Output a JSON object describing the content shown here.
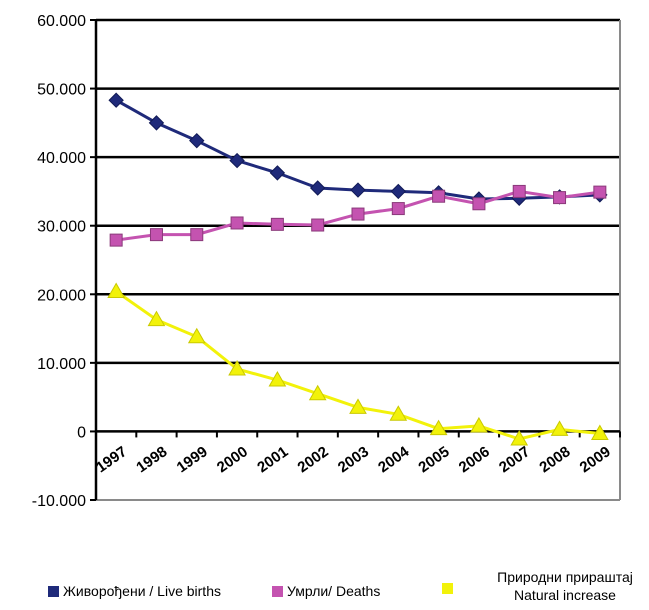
{
  "chart_data": {
    "type": "line",
    "categories": [
      "1997",
      "1998",
      "1999",
      "2000",
      "2001",
      "2002",
      "2003",
      "2004",
      "2005",
      "2006",
      "2007",
      "2008",
      "2009"
    ],
    "ylim": [
      -10000,
      60000
    ],
    "yticks": [
      -10000,
      0,
      10000,
      20000,
      30000,
      40000,
      50000,
      60000
    ],
    "ytick_labels": [
      "-10.000",
      "0",
      "10.000",
      "20.000",
      "30.000",
      "40.000",
      "50.000",
      "60.000"
    ],
    "grid": true,
    "legend_position": "bottom",
    "series": [
      {
        "name": "Живорођени / Live births",
        "color": "#1f2a7a",
        "marker": "diamond",
        "values": [
          48300,
          45000,
          42400,
          39500,
          37700,
          35500,
          35200,
          35000,
          34800,
          33900,
          34000,
          34200,
          34500
        ]
      },
      {
        "name": "Умрли/ Deaths",
        "color": "#c453b0",
        "marker": "square",
        "values": [
          27900,
          28700,
          28700,
          30400,
          30200,
          30100,
          31700,
          32500,
          34300,
          33200,
          35000,
          34100,
          34900
        ]
      },
      {
        "name_line1": "Природни прираштај",
        "name_line2": "Natural increase",
        "color": "#f2f20a",
        "marker": "triangle",
        "values": [
          20400,
          16300,
          13800,
          9100,
          7500,
          5500,
          3500,
          2500,
          400,
          800,
          -1100,
          300,
          -300
        ]
      }
    ]
  }
}
